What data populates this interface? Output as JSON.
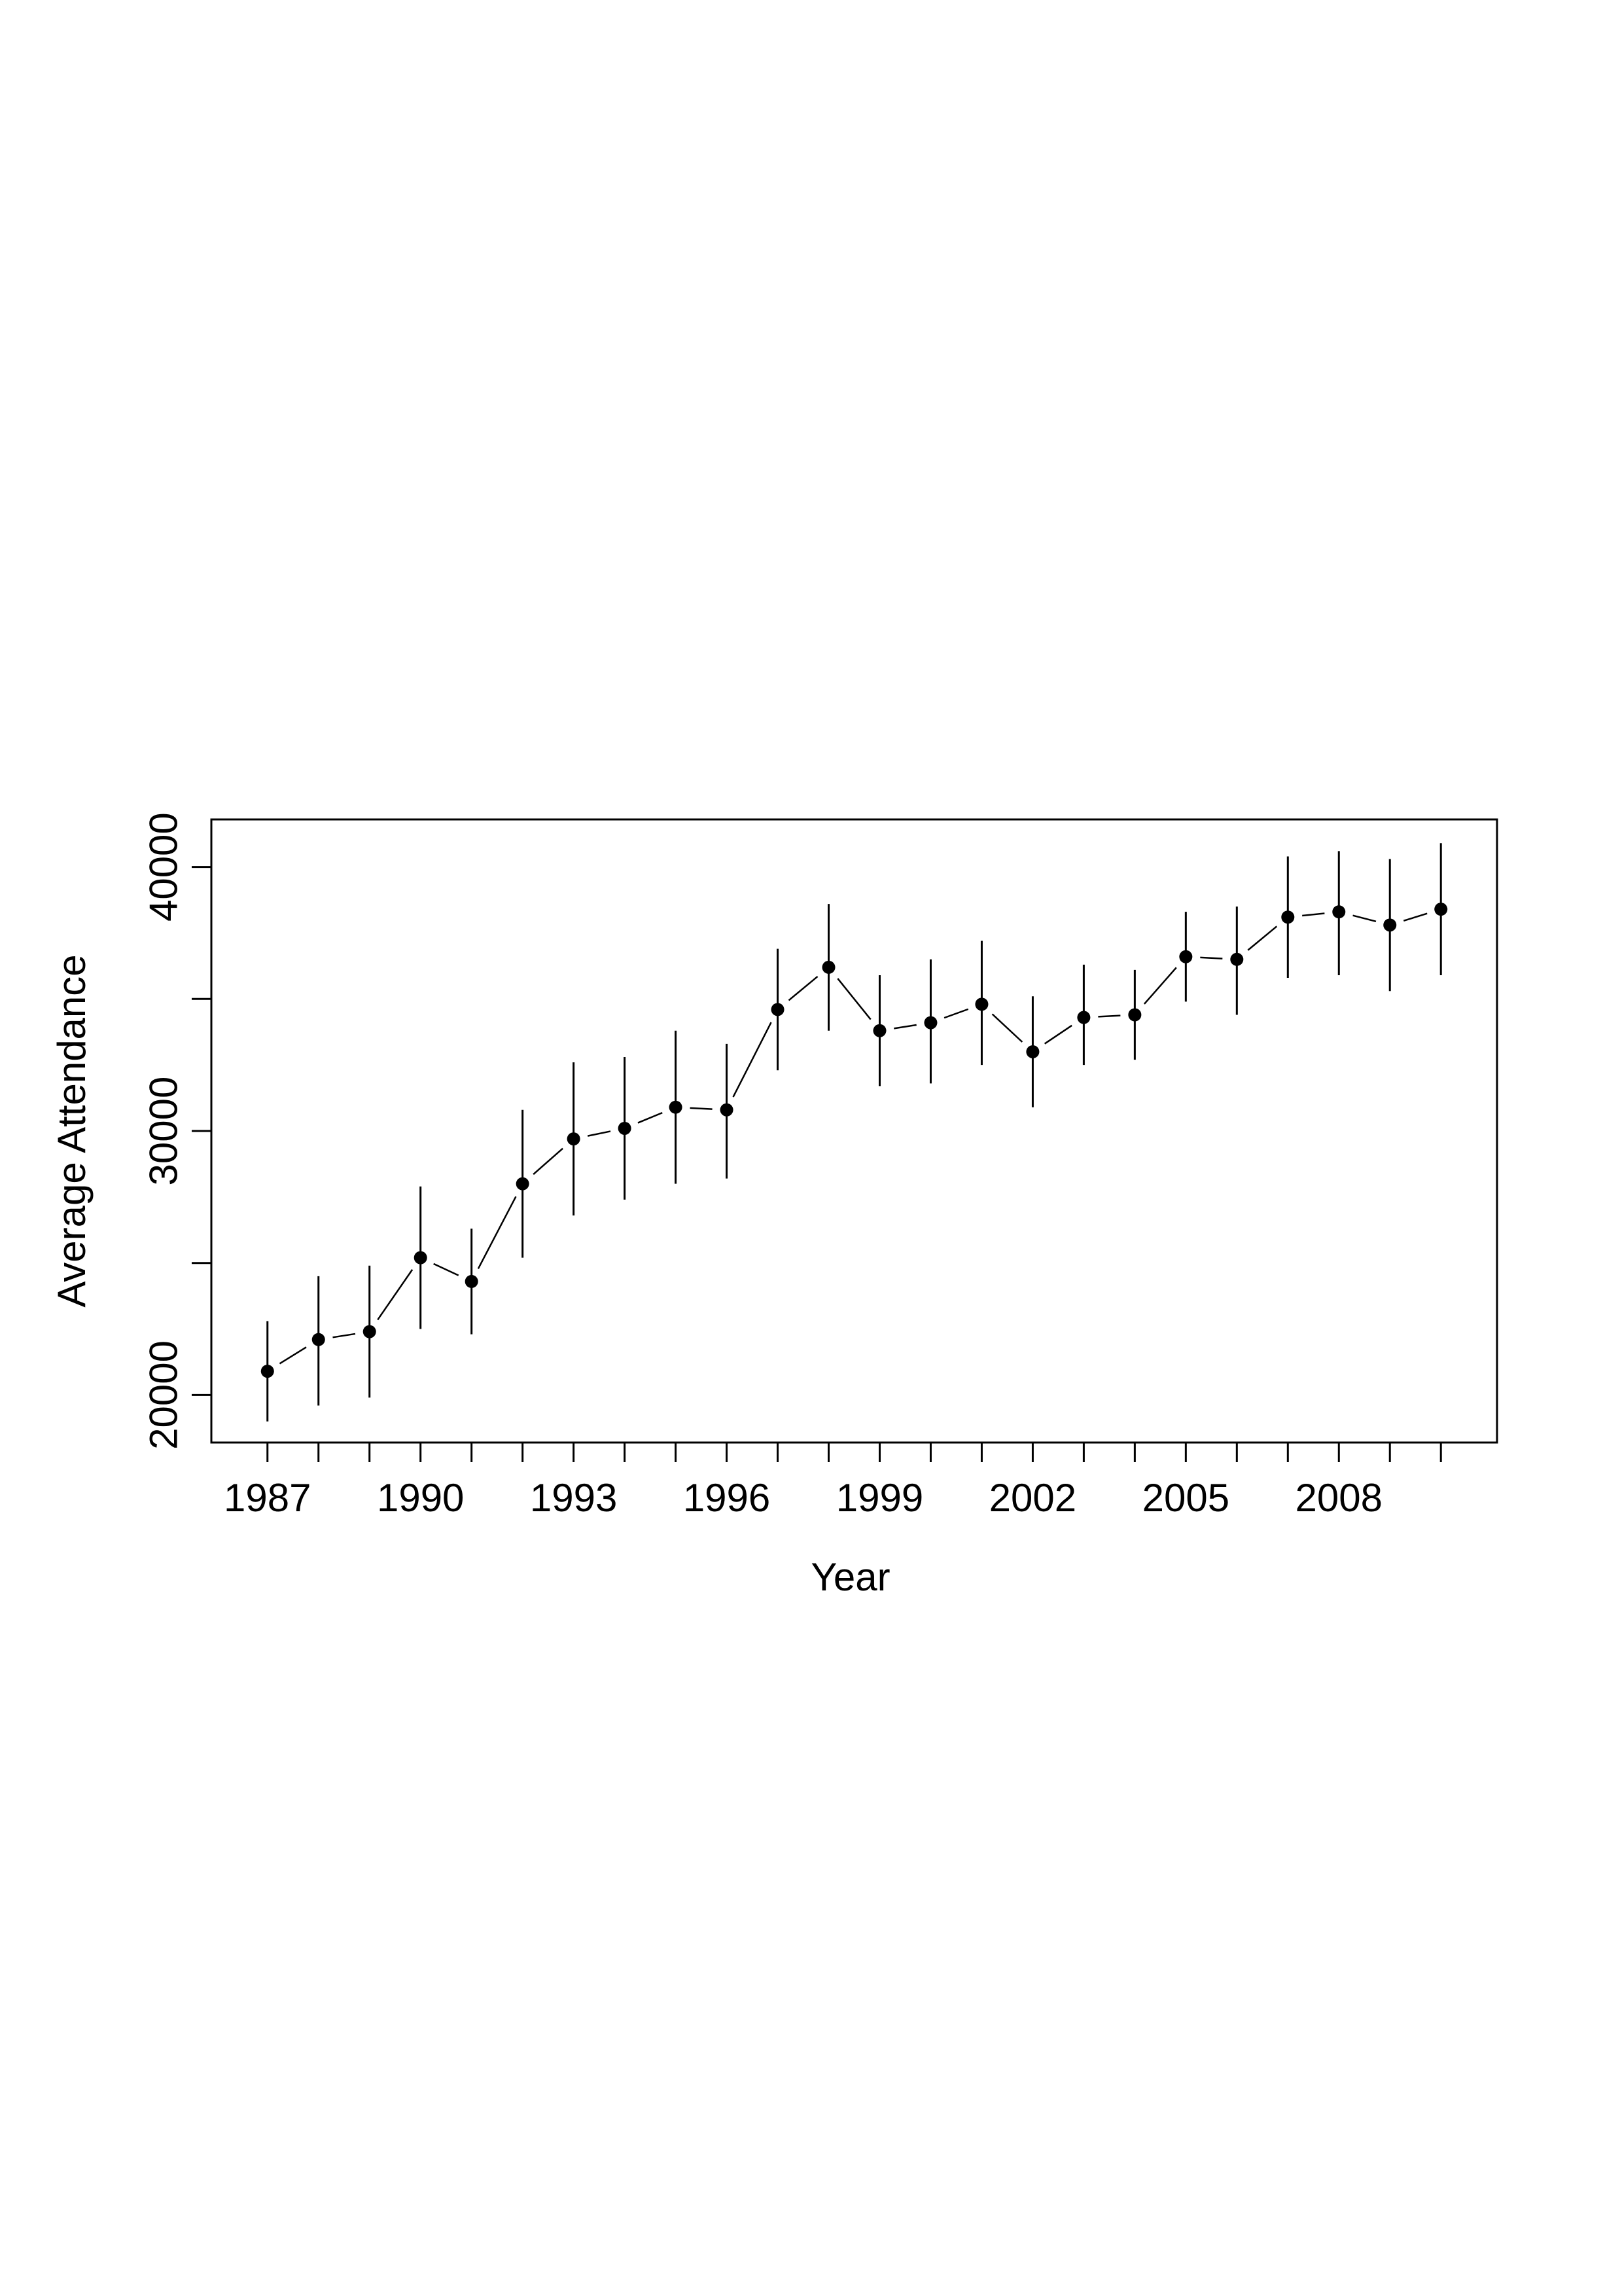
{
  "chart_data": {
    "type": "scatter",
    "title": "",
    "xlabel": "Year",
    "ylabel": "Average Attendance",
    "x_ticks": [
      1987,
      1990,
      1993,
      1996,
      1999,
      2002,
      2005,
      2008
    ],
    "x_tick_labels": [
      "1987",
      "1990",
      "1993",
      "1996",
      "1999",
      "2002",
      "2005",
      "2008"
    ],
    "y_ticks": [
      20000,
      25000,
      30000,
      35000,
      40000
    ],
    "y_tick_labels": [
      "20000",
      "",
      "30000",
      "",
      "40000"
    ],
    "xlim": [
      1985.9,
      2011.1
    ],
    "ylim": [
      18200,
      41800
    ],
    "grid": false,
    "legend": "none",
    "marker_color": "#000000",
    "line_style": "solid",
    "series": [
      {
        "x": [
          1987,
          1988,
          1989,
          1990,
          1991,
          1992,
          1993,
          1994,
          1995,
          1996,
          1997,
          1998,
          1999,
          2000,
          2001,
          2002,
          2003,
          2004,
          2005,
          2006,
          2007,
          2008,
          2009,
          2010
        ],
        "y": [
          20900,
          22100,
          22400,
          25200,
          24300,
          28000,
          29700,
          30100,
          30900,
          30800,
          34600,
          36200,
          33800,
          34100,
          34800,
          33000,
          34300,
          34400,
          36600,
          36500,
          38100,
          38300,
          37800,
          38400
        ],
        "y_low": [
          19000,
          19600,
          19900,
          22500,
          22300,
          25200,
          26800,
          27400,
          28000,
          28200,
          32300,
          33800,
          31700,
          31800,
          32500,
          30900,
          32500,
          32700,
          34900,
          34400,
          35800,
          35900,
          35300,
          35900
        ],
        "y_high": [
          22800,
          24500,
          24900,
          27900,
          26300,
          30800,
          32600,
          32800,
          33800,
          33300,
          36900,
          38600,
          35900,
          36500,
          37200,
          35100,
          36300,
          36100,
          38300,
          38500,
          40400,
          40600,
          40300,
          40900
        ]
      }
    ]
  }
}
